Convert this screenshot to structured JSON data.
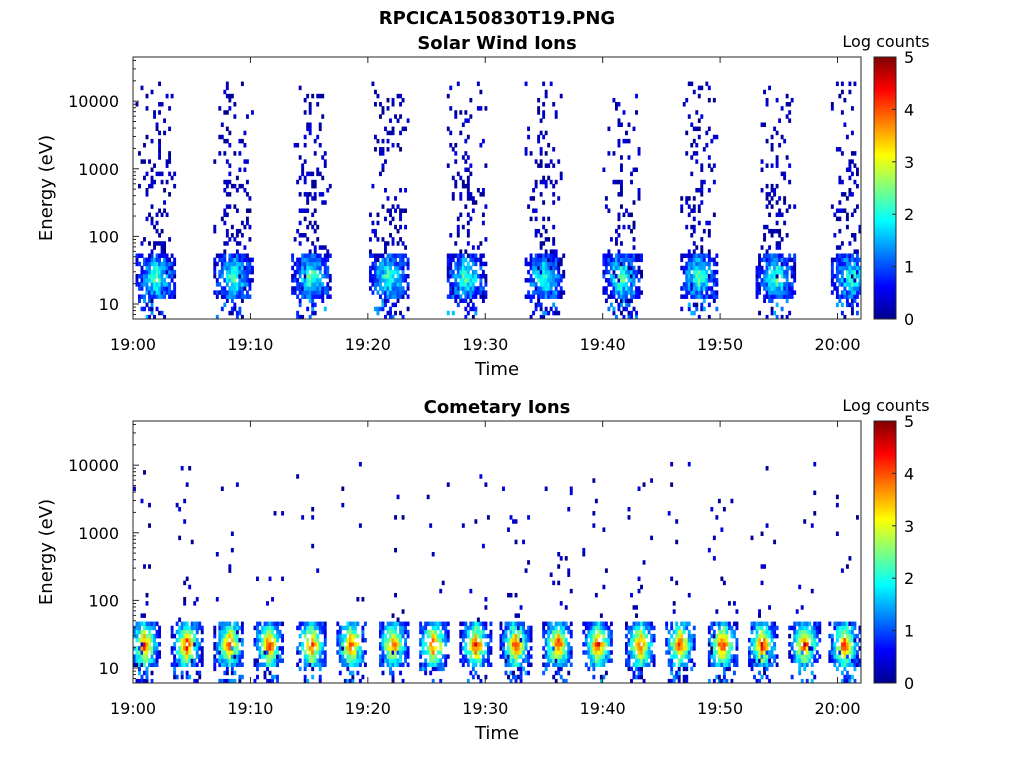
{
  "figure": {
    "title": "RPCICA150830T19.PNG"
  },
  "chart_data": [
    {
      "type": "heatmap",
      "title": "Solar Wind Ions",
      "xlabel": "Time",
      "ylabel": "Energy (eV)",
      "xlim": [
        "19:00",
        "20:02"
      ],
      "ylim": [
        6,
        45000
      ],
      "yscale": "log",
      "x_ticks": [
        "19:00",
        "19:10",
        "19:20",
        "19:30",
        "19:40",
        "19:50",
        "20:00"
      ],
      "y_ticks": [
        "10",
        "100",
        "1000",
        "10000"
      ],
      "colorbar": {
        "label": "Log counts",
        "range": [
          0,
          5
        ],
        "ticks": [
          "0",
          "1",
          "2",
          "3",
          "4",
          "5"
        ],
        "colormap": "jet"
      },
      "burst_centers_min": [
        2,
        8.6,
        15.2,
        21.8,
        28.4,
        35,
        41.6,
        48.2,
        54.8,
        61.2
      ],
      "burst_width_min": 3.4,
      "peak_energy_eV": 25,
      "peak_log_counts": 2.0,
      "max_energy_eV": 20000,
      "grid": false
    },
    {
      "type": "heatmap",
      "title": "Cometary Ions",
      "xlabel": "Time",
      "ylabel": "Energy (eV)",
      "xlim": [
        "19:00",
        "20:02"
      ],
      "ylim": [
        6,
        45000
      ],
      "yscale": "log",
      "x_ticks": [
        "19:00",
        "19:10",
        "19:20",
        "19:30",
        "19:40",
        "19:50",
        "20:00"
      ],
      "y_ticks": [
        "10",
        "100",
        "1000",
        "10000"
      ],
      "colorbar": {
        "label": "Log counts",
        "range": [
          0,
          5
        ],
        "ticks": [
          "0",
          "1",
          "2",
          "3",
          "4",
          "5"
        ],
        "colormap": "jet"
      },
      "burst_centers_min": [
        1,
        4.6,
        8.2,
        11.6,
        15.2,
        18.6,
        22.2,
        25.6,
        29.2,
        32.6,
        36.2,
        39.6,
        43.2,
        46.6,
        50.2,
        53.6,
        57.2,
        60.6
      ],
      "burst_width_min": 2.6,
      "peak_energy_eV": 22,
      "peak_log_counts": 4.0,
      "max_energy_eV": 11000,
      "grid": false
    }
  ]
}
